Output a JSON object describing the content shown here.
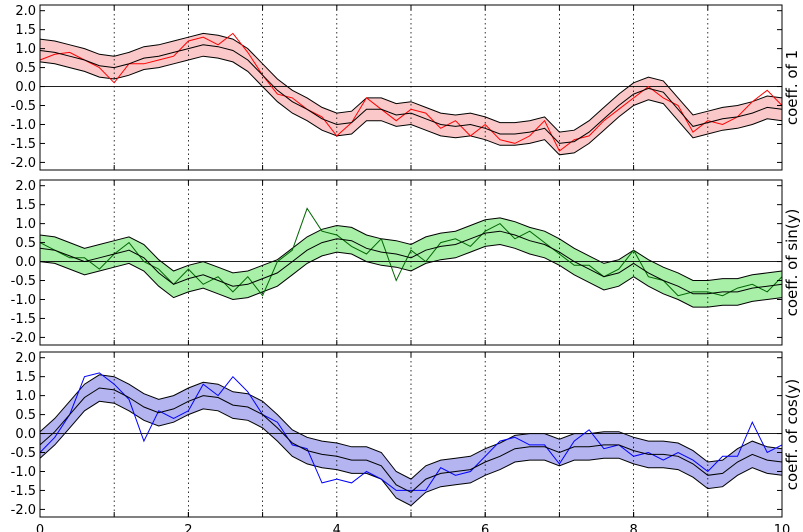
{
  "chart_data": [
    {
      "type": "line",
      "ylabel": "coeff. of 1",
      "x": [
        0,
        0.2,
        0.4,
        0.6,
        0.8,
        1,
        1.2,
        1.4,
        1.6,
        1.8,
        2,
        2.2,
        2.4,
        2.6,
        2.8,
        3,
        3.2,
        3.4,
        3.6,
        3.8,
        4,
        4.2,
        4.4,
        4.6,
        4.8,
        5,
        5.2,
        5.4,
        5.6,
        5.8,
        6,
        6.2,
        6.4,
        6.6,
        6.8,
        7,
        7.2,
        7.4,
        7.6,
        7.8,
        8,
        8.2,
        8.4,
        8.6,
        8.8,
        9,
        9.2,
        9.4,
        9.6,
        9.8,
        10
      ],
      "xlim": [
        0,
        10
      ],
      "ylim": [
        -2.2,
        2.15
      ],
      "xgrid": [
        1,
        2,
        3,
        4,
        5,
        6,
        7,
        8,
        9
      ],
      "hline": 0,
      "yticks": [
        {
          "value": -2,
          "label": "-2.0"
        },
        -1.5,
        {
          "value": -1,
          "label": "-1.0"
        },
        -0.5,
        {
          "value": 0,
          "label": "0.0"
        },
        0.5,
        {
          "value": 1,
          "label": "1.0"
        },
        1.5,
        {
          "value": 2,
          "label": "2.0"
        }
      ],
      "band": {
        "color": "#fac8c8",
        "edge": "#000000",
        "upper": [
          1.25,
          1.2,
          1.1,
          1.0,
          0.85,
          0.8,
          0.9,
          1.05,
          1.1,
          1.2,
          1.3,
          1.4,
          1.35,
          1.25,
          1.0,
          0.6,
          0.2,
          -0.1,
          -0.3,
          -0.55,
          -0.7,
          -0.65,
          -0.3,
          -0.3,
          -0.45,
          -0.4,
          -0.55,
          -0.7,
          -0.75,
          -0.7,
          -0.8,
          -0.95,
          -0.95,
          -0.9,
          -0.8,
          -1.2,
          -1.15,
          -0.9,
          -0.55,
          -0.2,
          0.1,
          0.25,
          0.15,
          -0.3,
          -0.75,
          -0.65,
          -0.55,
          -0.5,
          -0.4,
          -0.25,
          -0.3
        ],
        "lower": [
          0.65,
          0.6,
          0.5,
          0.4,
          0.25,
          0.2,
          0.3,
          0.45,
          0.5,
          0.6,
          0.7,
          0.8,
          0.75,
          0.65,
          0.4,
          0.0,
          -0.4,
          -0.7,
          -0.9,
          -1.15,
          -1.3,
          -1.25,
          -0.9,
          -0.9,
          -1.05,
          -1.0,
          -1.15,
          -1.3,
          -1.35,
          -1.3,
          -1.4,
          -1.55,
          -1.55,
          -1.5,
          -1.4,
          -1.8,
          -1.75,
          -1.5,
          -1.15,
          -0.8,
          -0.5,
          -0.35,
          -0.45,
          -0.9,
          -1.35,
          -1.25,
          -1.15,
          -1.1,
          -1.0,
          -0.85,
          -0.9
        ]
      },
      "series": [
        {
          "color": "#ff0000",
          "values": [
            0.7,
            0.85,
            0.9,
            0.7,
            0.5,
            0.1,
            0.6,
            0.6,
            0.7,
            0.8,
            1.2,
            1.3,
            1.1,
            1.4,
            0.9,
            0.3,
            -0.2,
            -0.3,
            -0.6,
            -0.8,
            -1.3,
            -0.95,
            -0.3,
            -0.6,
            -0.9,
            -0.6,
            -0.7,
            -1.1,
            -0.9,
            -1.3,
            -1.0,
            -1.4,
            -1.5,
            -1.3,
            -0.9,
            -1.7,
            -1.4,
            -1.3,
            -0.9,
            -0.6,
            -0.3,
            0.0,
            -0.3,
            -0.5,
            -1.2,
            -0.9,
            -1.0,
            -0.8,
            -0.4,
            -0.1,
            -0.5
          ]
        },
        {
          "color": "#000000",
          "values": [
            0.95,
            0.9,
            0.8,
            0.7,
            0.55,
            0.5,
            0.6,
            0.75,
            0.8,
            0.9,
            1.0,
            1.1,
            1.05,
            0.95,
            0.7,
            0.3,
            -0.1,
            -0.4,
            -0.6,
            -0.85,
            -1.0,
            -0.95,
            -0.6,
            -0.6,
            -0.75,
            -0.7,
            -0.85,
            -1.0,
            -1.05,
            -1.0,
            -1.1,
            -1.25,
            -1.25,
            -1.2,
            -1.1,
            -1.5,
            -1.45,
            -1.2,
            -0.85,
            -0.5,
            -0.2,
            -0.05,
            -0.15,
            -0.6,
            -1.05,
            -0.95,
            -0.85,
            -0.8,
            -0.7,
            -0.55,
            -0.6
          ]
        }
      ]
    },
    {
      "type": "line",
      "ylabel": "coeff. of sin(y)",
      "x": [
        0,
        0.2,
        0.4,
        0.6,
        0.8,
        1,
        1.2,
        1.4,
        1.6,
        1.8,
        2,
        2.2,
        2.4,
        2.6,
        2.8,
        3,
        3.2,
        3.4,
        3.6,
        3.8,
        4,
        4.2,
        4.4,
        4.6,
        4.8,
        5,
        5.2,
        5.4,
        5.6,
        5.8,
        6,
        6.2,
        6.4,
        6.6,
        6.8,
        7,
        7.2,
        7.4,
        7.6,
        7.8,
        8,
        8.2,
        8.4,
        8.6,
        8.8,
        9,
        9.2,
        9.4,
        9.6,
        9.8,
        10
      ],
      "xlim": [
        0,
        10
      ],
      "ylim": [
        -2.2,
        2.15
      ],
      "xgrid": [
        1,
        2,
        3,
        4,
        5,
        6,
        7,
        8,
        9
      ],
      "hline": 0,
      "yticks": [
        {
          "value": -2,
          "label": "-2.0"
        },
        -1.5,
        {
          "value": -1,
          "label": "-1.0"
        },
        -0.5,
        {
          "value": 0,
          "label": "0.0"
        },
        0.5,
        {
          "value": 1,
          "label": "1.0"
        },
        1.5,
        {
          "value": 2,
          "label": "2.0"
        }
      ],
      "band": {
        "color": "#a8f0a8",
        "edge": "#000000",
        "upper": [
          0.7,
          0.65,
          0.5,
          0.35,
          0.45,
          0.55,
          0.65,
          0.45,
          0.05,
          -0.25,
          -0.1,
          0.0,
          -0.15,
          -0.3,
          -0.25,
          -0.1,
          0.05,
          0.35,
          0.65,
          0.85,
          0.95,
          0.9,
          0.7,
          0.6,
          0.55,
          0.45,
          0.65,
          0.75,
          0.8,
          0.95,
          1.1,
          1.15,
          1.05,
          0.9,
          0.8,
          0.6,
          0.35,
          0.15,
          -0.05,
          0.05,
          0.3,
          0.05,
          -0.15,
          -0.3,
          -0.5,
          -0.5,
          -0.45,
          -0.45,
          -0.35,
          -0.3,
          -0.25
        ],
        "lower": [
          0.0,
          -0.05,
          -0.2,
          -0.35,
          -0.25,
          -0.15,
          -0.05,
          -0.25,
          -0.65,
          -0.95,
          -0.8,
          -0.7,
          -0.85,
          -1.0,
          -0.95,
          -0.8,
          -0.65,
          -0.35,
          -0.05,
          0.15,
          0.25,
          0.2,
          0.0,
          -0.1,
          -0.15,
          -0.25,
          -0.05,
          0.05,
          0.1,
          0.25,
          0.4,
          0.45,
          0.35,
          0.2,
          0.1,
          -0.1,
          -0.35,
          -0.55,
          -0.75,
          -0.65,
          -0.4,
          -0.65,
          -0.85,
          -1.0,
          -1.2,
          -1.2,
          -1.15,
          -1.15,
          -1.05,
          -1.0,
          -0.95
        ]
      },
      "series": [
        {
          "color": "#006600",
          "values": [
            0.5,
            0.3,
            0.1,
            0.1,
            -0.2,
            0.2,
            0.5,
            0.0,
            -0.2,
            -0.6,
            -0.2,
            -0.6,
            -0.4,
            -0.8,
            -0.4,
            -0.9,
            0.0,
            0.3,
            1.4,
            0.8,
            0.7,
            0.4,
            0.2,
            0.6,
            -0.5,
            0.3,
            0.0,
            0.5,
            0.6,
            0.4,
            0.8,
            1.0,
            0.6,
            0.8,
            0.5,
            0.2,
            -0.1,
            -0.1,
            -0.4,
            -0.2,
            0.3,
            -0.4,
            -0.5,
            -0.9,
            -0.8,
            -0.8,
            -0.9,
            -0.7,
            -0.6,
            -0.8,
            -0.4
          ]
        },
        {
          "color": "#000000",
          "values": [
            0.35,
            0.3,
            0.15,
            0.0,
            0.1,
            0.2,
            0.3,
            0.1,
            -0.3,
            -0.6,
            -0.45,
            -0.35,
            -0.5,
            -0.65,
            -0.6,
            -0.45,
            -0.3,
            0.0,
            0.3,
            0.5,
            0.6,
            0.55,
            0.35,
            0.25,
            0.2,
            0.1,
            0.3,
            0.4,
            0.45,
            0.6,
            0.75,
            0.8,
            0.7,
            0.55,
            0.45,
            0.25,
            0.0,
            -0.2,
            -0.4,
            -0.3,
            -0.05,
            -0.3,
            -0.5,
            -0.65,
            -0.85,
            -0.85,
            -0.8,
            -0.8,
            -0.7,
            -0.65,
            -0.6
          ]
        }
      ]
    },
    {
      "type": "line",
      "ylabel": "coeff. of cos(y)",
      "x": [
        0,
        0.2,
        0.4,
        0.6,
        0.8,
        1,
        1.2,
        1.4,
        1.6,
        1.8,
        2,
        2.2,
        2.4,
        2.6,
        2.8,
        3,
        3.2,
        3.4,
        3.6,
        3.8,
        4,
        4.2,
        4.4,
        4.6,
        4.8,
        5,
        5.2,
        5.4,
        5.6,
        5.8,
        6,
        6.2,
        6.4,
        6.6,
        6.8,
        7,
        7.2,
        7.4,
        7.6,
        7.8,
        8,
        8.2,
        8.4,
        8.6,
        8.8,
        9,
        9.2,
        9.4,
        9.6,
        9.8,
        10
      ],
      "xlim": [
        0,
        10
      ],
      "ylim": [
        -2.2,
        2.15
      ],
      "xgrid": [
        1,
        2,
        3,
        4,
        5,
        6,
        7,
        8,
        9
      ],
      "hline": 0,
      "xticks": [
        0,
        2,
        4,
        6,
        8,
        10
      ],
      "yticks": [
        {
          "value": -2,
          "label": "-2.0"
        },
        -1.5,
        {
          "value": -1,
          "label": "-1.0"
        },
        -0.5,
        {
          "value": 0,
          "label": "0.0"
        },
        0.5,
        {
          "value": 1,
          "label": "1.0"
        },
        1.5,
        {
          "value": 2,
          "label": "2.0"
        }
      ],
      "band": {
        "color": "#b4b4f0",
        "edge": "#000000",
        "upper": [
          0.05,
          0.4,
          0.85,
          1.3,
          1.55,
          1.5,
          1.3,
          1.05,
          0.9,
          1.0,
          1.2,
          1.35,
          1.3,
          1.1,
          1.05,
          0.85,
          0.5,
          0.1,
          -0.1,
          -0.2,
          -0.25,
          -0.35,
          -0.35,
          -0.5,
          -1.0,
          -1.2,
          -0.85,
          -0.7,
          -0.65,
          -0.6,
          -0.4,
          -0.25,
          -0.05,
          0.0,
          0.0,
          -0.15,
          0.0,
          0.0,
          0.05,
          0.05,
          -0.1,
          -0.2,
          -0.2,
          -0.25,
          -0.45,
          -0.75,
          -0.7,
          -0.4,
          -0.2,
          -0.35,
          -0.4
        ],
        "lower": [
          -0.65,
          -0.3,
          0.15,
          0.6,
          0.85,
          0.8,
          0.6,
          0.35,
          0.2,
          0.3,
          0.5,
          0.65,
          0.6,
          0.4,
          0.35,
          0.15,
          -0.2,
          -0.6,
          -0.8,
          -0.9,
          -0.95,
          -1.05,
          -1.05,
          -1.2,
          -1.7,
          -1.9,
          -1.55,
          -1.4,
          -1.35,
          -1.3,
          -1.1,
          -0.95,
          -0.75,
          -0.7,
          -0.7,
          -0.85,
          -0.7,
          -0.7,
          -0.65,
          -0.65,
          -0.8,
          -0.9,
          -0.9,
          -0.95,
          -1.15,
          -1.45,
          -1.4,
          -1.1,
          -0.9,
          -1.05,
          -1.1
        ]
      },
      "series": [
        {
          "color": "#0000ff",
          "values": [
            -0.5,
            -0.1,
            0.5,
            1.5,
            1.6,
            1.3,
            0.9,
            -0.2,
            0.6,
            0.4,
            0.6,
            1.3,
            1.0,
            1.5,
            1.1,
            0.5,
            0.3,
            -0.3,
            -0.4,
            -1.3,
            -1.2,
            -1.3,
            -1.0,
            -1.2,
            -1.5,
            -1.5,
            -1.5,
            -0.9,
            -1.1,
            -1.0,
            -0.6,
            -0.2,
            -0.1,
            -0.3,
            -0.3,
            -0.8,
            -0.2,
            0.1,
            -0.4,
            -0.3,
            -0.6,
            -0.5,
            -0.7,
            -0.5,
            -0.7,
            -1.0,
            -0.6,
            -0.6,
            0.3,
            -0.5,
            -0.3
          ]
        },
        {
          "color": "#000000",
          "values": [
            -0.3,
            0.05,
            0.5,
            0.95,
            1.2,
            1.15,
            0.95,
            0.7,
            0.55,
            0.65,
            0.85,
            1.0,
            0.95,
            0.75,
            0.7,
            0.5,
            0.15,
            -0.25,
            -0.45,
            -0.55,
            -0.6,
            -0.7,
            -0.7,
            -0.85,
            -1.35,
            -1.55,
            -1.2,
            -1.05,
            -1.0,
            -0.95,
            -0.75,
            -0.6,
            -0.4,
            -0.35,
            -0.35,
            -0.5,
            -0.35,
            -0.35,
            -0.3,
            -0.3,
            -0.45,
            -0.55,
            -0.55,
            -0.6,
            -0.8,
            -1.1,
            -1.05,
            -0.75,
            -0.55,
            -0.7,
            -0.75
          ]
        }
      ]
    }
  ]
}
